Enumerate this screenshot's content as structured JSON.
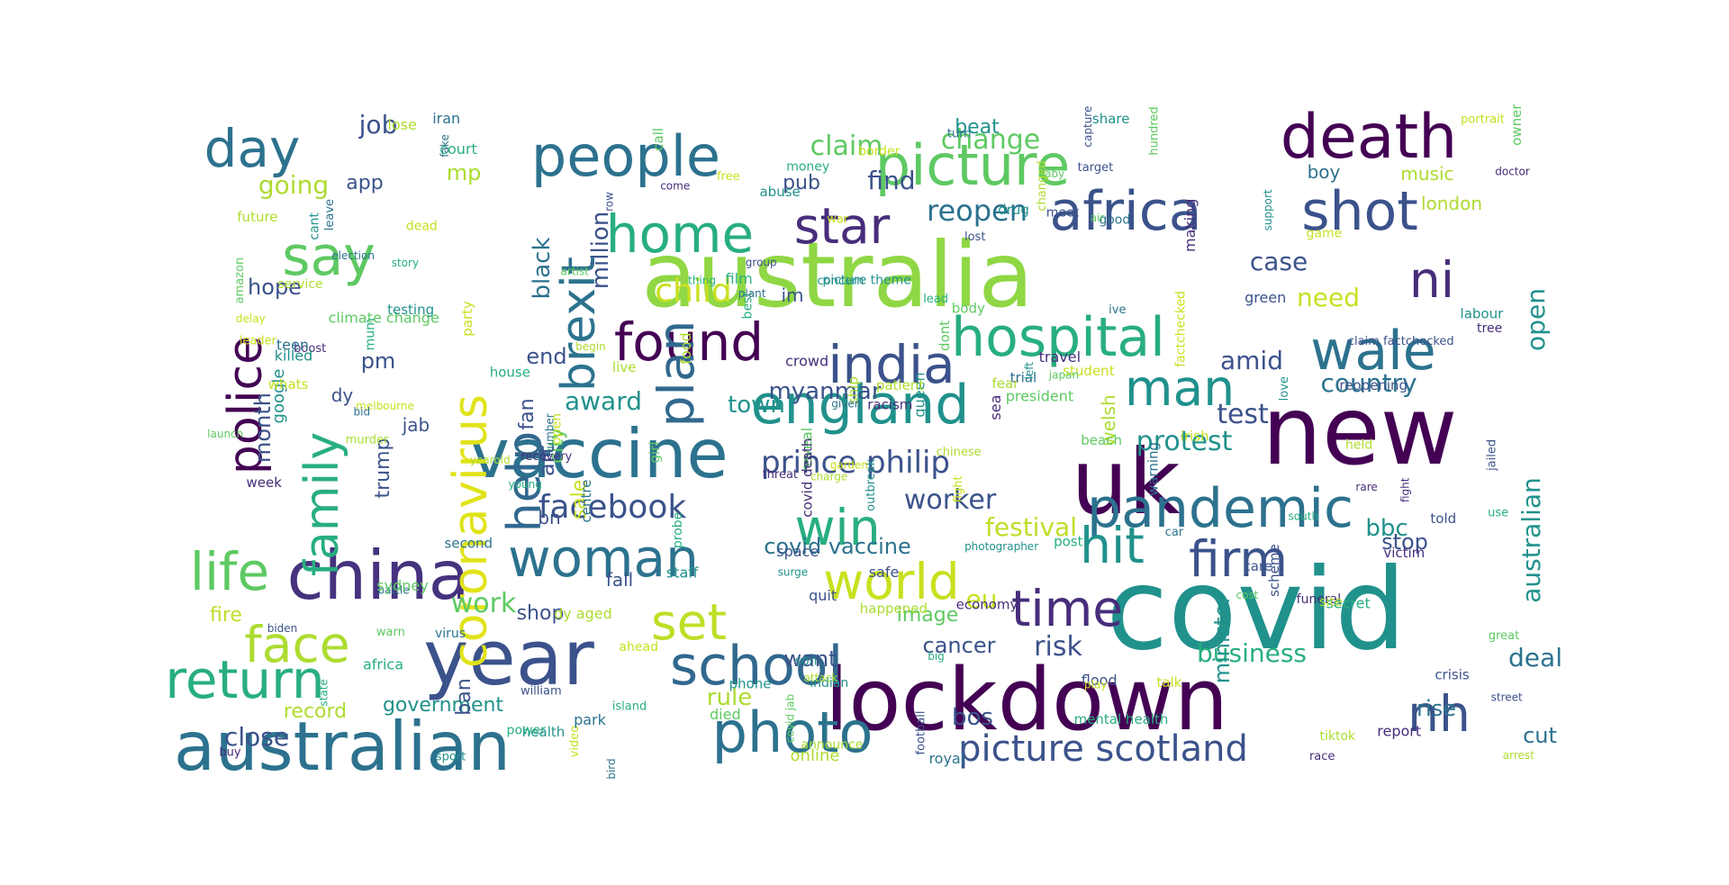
{
  "palette": {
    "purple": "#440154",
    "indigo": "#472d7b",
    "blue": "#3b528b",
    "steel": "#2c728e",
    "teal": "#21918c",
    "green": "#28ae80",
    "lime": "#5ec962",
    "yellowgreen": "#addc30",
    "yellow": "#e0e319"
  },
  "words": [
    {
      "text": "covid",
      "color": "#21918c"
    },
    {
      "text": "lockdown",
      "color": "#440154"
    },
    {
      "text": "australia",
      "color": "#8fd744"
    },
    {
      "text": "new",
      "color": "#440154"
    },
    {
      "text": "uk",
      "color": "#440154"
    },
    {
      "text": "year",
      "color": "#3b528b"
    },
    {
      "text": "australian",
      "color": "#2c728e"
    },
    {
      "text": "china",
      "color": "#46327e"
    },
    {
      "text": "vaccine",
      "color": "#2c728e"
    },
    {
      "text": "death",
      "color": "#440154"
    },
    {
      "text": "picture",
      "color": "#5ec962"
    },
    {
      "text": "people",
      "color": "#2c728e"
    },
    {
      "text": "africa",
      "color": "#3b528b"
    },
    {
      "text": "shot",
      "color": "#3b528b"
    },
    {
      "text": "pandemic",
      "color": "#2c728e"
    },
    {
      "text": "england",
      "color": "#21918c"
    },
    {
      "text": "hospital",
      "color": "#28ae80"
    },
    {
      "text": "photo",
      "color": "#2c728e"
    },
    {
      "text": "school",
      "color": "#31688e"
    },
    {
      "text": "face",
      "color": "#addc30"
    },
    {
      "text": "return",
      "color": "#28ae80"
    },
    {
      "text": "life",
      "color": "#5ec962"
    },
    {
      "text": "woman",
      "color": "#2c728e"
    },
    {
      "text": "day",
      "color": "#2c728e"
    },
    {
      "text": "say",
      "color": "#5ec962"
    },
    {
      "text": "home",
      "color": "#28ae80"
    },
    {
      "text": "star",
      "color": "#472d7b"
    },
    {
      "text": "found",
      "color": "#440154"
    },
    {
      "text": "india",
      "color": "#3b528b"
    },
    {
      "text": "man",
      "color": "#21918c"
    },
    {
      "text": "wale",
      "color": "#2c728e"
    },
    {
      "text": "ni",
      "color": "#472d7b"
    },
    {
      "text": "hit",
      "color": "#21918c"
    },
    {
      "text": "firm",
      "color": "#3b528b"
    },
    {
      "text": "win",
      "color": "#28ae80"
    },
    {
      "text": "world",
      "color": "#c8e020"
    },
    {
      "text": "time",
      "color": "#472d7b"
    },
    {
      "text": "set",
      "color": "#bddf26"
    },
    {
      "text": "nh",
      "color": "#3b528b"
    },
    {
      "text": "picture scotland",
      "color": "#3b528b"
    },
    {
      "text": "coronavirus",
      "color": "#e0e319"
    },
    {
      "text": "family",
      "color": "#28ae80"
    },
    {
      "text": "police",
      "color": "#440154"
    },
    {
      "text": "help",
      "color": "#31688e"
    },
    {
      "text": "plan",
      "color": "#31688e"
    },
    {
      "text": "brexit",
      "color": "#2c728e"
    },
    {
      "text": "facebook",
      "color": "#3b528b"
    },
    {
      "text": "prince philip",
      "color": "#3b528b"
    },
    {
      "text": "child",
      "color": "#c8e020"
    },
    {
      "text": "reopen",
      "color": "#2c728e"
    },
    {
      "text": "claim",
      "color": "#5ec962"
    },
    {
      "text": "change",
      "color": "#5ec962"
    },
    {
      "text": "find",
      "color": "#3b528b"
    },
    {
      "text": "test",
      "color": "#3b528b"
    },
    {
      "text": "protest",
      "color": "#21918c"
    },
    {
      "text": "country",
      "color": "#2c728e"
    },
    {
      "text": "amid",
      "color": "#3b528b"
    },
    {
      "text": "case",
      "color": "#3b528b"
    },
    {
      "text": "need",
      "color": "#c8e020"
    },
    {
      "text": "open",
      "color": "#21918c"
    },
    {
      "text": "australian",
      "color": "#21918c"
    },
    {
      "text": "bbc",
      "color": "#21918c"
    },
    {
      "text": "stop",
      "color": "#3b528b"
    },
    {
      "text": "deal",
      "color": "#2c728e"
    },
    {
      "text": "business",
      "color": "#28ae80"
    },
    {
      "text": "rise",
      "color": "#2c728e"
    },
    {
      "text": "cut",
      "color": "#2c728e"
    },
    {
      "text": "worker",
      "color": "#3b528b"
    },
    {
      "text": "festival",
      "color": "#bddf26"
    },
    {
      "text": "eu",
      "color": "#c8e020"
    },
    {
      "text": "risk",
      "color": "#3b528b"
    },
    {
      "text": "minister",
      "color": "#21918c"
    },
    {
      "text": "cancer",
      "color": "#3b528b"
    },
    {
      "text": "bos",
      "color": "#3b528b"
    },
    {
      "text": "rule",
      "color": "#addc30"
    },
    {
      "text": "covid vaccine",
      "color": "#2c728e"
    },
    {
      "text": "want",
      "color": "#3b528b"
    },
    {
      "text": "image",
      "color": "#5ec962"
    },
    {
      "text": "award",
      "color": "#21918c"
    },
    {
      "text": "town",
      "color": "#21918c"
    },
    {
      "text": "myanmar",
      "color": "#3b528b"
    },
    {
      "text": "end",
      "color": "#3b528b"
    },
    {
      "text": "fan",
      "color": "#3b528b"
    },
    {
      "text": "city",
      "color": "#5ec962"
    },
    {
      "text": "million",
      "color": "#3b528b"
    },
    {
      "text": "black",
      "color": "#2c728e"
    },
    {
      "text": "art",
      "color": "#3b528b"
    },
    {
      "text": "sale",
      "color": "#c8e020"
    },
    {
      "text": "bn",
      "color": "#3b528b"
    },
    {
      "text": "fall",
      "color": "#3b528b"
    },
    {
      "text": "shop",
      "color": "#3b528b"
    },
    {
      "text": "work",
      "color": "#5ec962"
    },
    {
      "text": "record",
      "color": "#addc30"
    },
    {
      "text": "government",
      "color": "#21918c"
    },
    {
      "text": "close",
      "color": "#3b528b"
    },
    {
      "text": "ban",
      "color": "#3b528b"
    },
    {
      "text": "fire",
      "color": "#bddf26"
    },
    {
      "text": "going",
      "color": "#addc30"
    },
    {
      "text": "job",
      "color": "#3b528b"
    },
    {
      "text": "app",
      "color": "#3b528b"
    },
    {
      "text": "hope",
      "color": "#3b528b"
    },
    {
      "text": "pm",
      "color": "#3b528b"
    },
    {
      "text": "dy",
      "color": "#3b528b"
    },
    {
      "text": "month",
      "color": "#3b528b"
    },
    {
      "text": "trump",
      "color": "#3b528b"
    },
    {
      "text": "jab",
      "color": "#3b528b"
    },
    {
      "text": "mp",
      "color": "#addc30"
    },
    {
      "text": "pub",
      "color": "#3b528b"
    },
    {
      "text": "music",
      "color": "#addc30"
    },
    {
      "text": "boy",
      "color": "#2c728e"
    },
    {
      "text": "london",
      "color": "#addc30"
    },
    {
      "text": "beat",
      "color": "#21918c"
    },
    {
      "text": "im",
      "color": "#3b528b"
    },
    {
      "text": "welsh",
      "color": "#addc30"
    },
    {
      "text": "google",
      "color": "#21918c"
    },
    {
      "text": "online",
      "color": "#addc30"
    },
    {
      "text": "save",
      "color": "#addc30"
    }
  ],
  "small_words": [
    "outbreak",
    "reveal",
    "fear",
    "target",
    "good",
    "court",
    "melbourne",
    "threat",
    "sport",
    "dont",
    "food",
    "william",
    "trial",
    "story",
    "whats",
    "tree",
    "son",
    "artist",
    "dy aged",
    "crisis",
    "turn",
    "house",
    "video",
    "sea",
    "indian",
    "warn",
    "future",
    "flood",
    "fake",
    "big",
    "border",
    "boost",
    "support",
    "baby",
    "ship",
    "quit",
    "car",
    "state",
    "party",
    "crowd",
    "queen",
    "beach",
    "announce",
    "safe",
    "royal",
    "money",
    "student",
    "racism",
    "killed",
    "air",
    "yearold",
    "jailed",
    "second",
    "island",
    "game",
    "fight",
    "picture theme",
    "call",
    "charge",
    "group",
    "battle",
    "lead",
    "irish",
    "report",
    "love",
    "sydney",
    "begin",
    "told",
    "centre",
    "use",
    "fight",
    "funeral",
    "left",
    "died",
    "attack",
    "claim factchecked",
    "teen",
    "south",
    "war",
    "recovery",
    "photographer",
    "launch",
    "changed",
    "space",
    "iran",
    "secret",
    "delay",
    "travel",
    "drug",
    "amazon",
    "service",
    "football",
    "leave",
    "mum",
    "ahead",
    "victim",
    "concern",
    "president",
    "murder",
    "care",
    "bid",
    "best",
    "factchecked",
    "covid death",
    "surge",
    "great",
    "live",
    "reopening",
    "virus",
    "probe",
    "free",
    "buy",
    "health",
    "japan",
    "lose",
    "capture",
    "bird",
    "young",
    "open",
    "week",
    "labour",
    "hundred",
    "happened",
    "street",
    "ive",
    "film",
    "portrait",
    "race",
    "staff",
    "body",
    "site",
    "biden",
    "given",
    "thing",
    "dead",
    "come",
    "cant",
    "girl",
    "tiktok",
    "meet",
    "number",
    "post",
    "talk",
    "economy",
    "phone",
    "owner",
    "arrest",
    "green",
    "election",
    "africa",
    "garden",
    "making",
    "share",
    "climate change",
    "chinese",
    "row",
    "plant",
    "power",
    "play",
    "doctor",
    "abuse",
    "covid jab",
    "patient",
    "scheme",
    "park",
    "mental health",
    "leader",
    "rare",
    "testing",
    "cost",
    "held",
    "lost",
    "warning"
  ]
}
